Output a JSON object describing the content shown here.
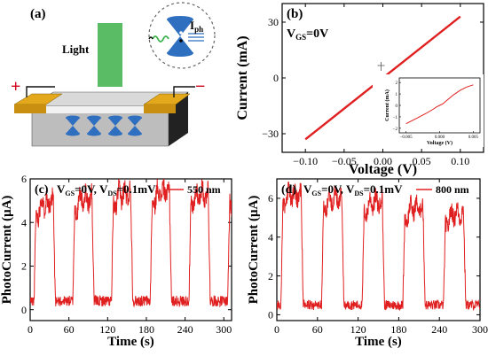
{
  "panel_a": {
    "label": "(a)",
    "light_label": "Light",
    "inset_label_main": "I",
    "inset_label_sub": "ph",
    "plus": "+",
    "minus": "−",
    "colors": {
      "light": "#3db24a",
      "electrode": "#e3a81c",
      "substrate": "#bdbdbd",
      "cone": "#2f6fbf",
      "plus": "#d0021b"
    }
  },
  "chart_data": [
    {
      "id": "b",
      "type": "line",
      "panel_label": "(b)",
      "annotation_main": "V",
      "annotation_sub": "GS",
      "annotation_rest": "=0V",
      "xlabel": "Voltage (V)",
      "ylabel": "Current (mA)",
      "xlim": [
        -0.13,
        0.13
      ],
      "ylim": [
        -40,
        40
      ],
      "x_ticks": [
        -0.1,
        -0.05,
        0.0,
        0.05,
        0.1
      ],
      "x_tick_labels": [
        "−0.10",
        "−0.05",
        "0.00",
        "0.05",
        "0.10"
      ],
      "y_ticks": [
        -30,
        0,
        30
      ],
      "y_tick_labels": [
        "−30",
        "0",
        "30"
      ],
      "series": [
        {
          "x": [
            -0.1,
            0.1
          ],
          "y": [
            -33,
            33
          ],
          "color": "#e02020"
        }
      ],
      "inset": {
        "xlabel": "Voltage (V)",
        "ylabel": "Current (mA)",
        "xlim": [
          -0.006,
          0.006
        ],
        "ylim": [
          -2.4,
          2.4
        ],
        "x_ticks": [
          -0.005,
          0.0,
          0.005
        ],
        "x_tick_labels": [
          "−0.005",
          "0.000",
          "0.005"
        ],
        "y_ticks": [
          -2,
          -1,
          0,
          1,
          2
        ],
        "y_tick_labels": [
          "−2",
          "−1",
          "0",
          "1",
          "2"
        ],
        "x": [
          -0.005,
          -0.004,
          -0.003,
          -0.002,
          -0.001,
          -0.0005,
          0.0,
          0.0005,
          0.001,
          0.002,
          0.003,
          0.004,
          0.005
        ],
        "y": [
          -1.6,
          -1.3,
          -1.0,
          -0.7,
          -0.35,
          -0.15,
          0.0,
          0.15,
          0.4,
          0.9,
          1.3,
          1.6,
          1.8
        ]
      }
    },
    {
      "id": "c",
      "type": "line",
      "panel_label": "(c)",
      "annotation": {
        "v1": "V",
        "s1": "GS",
        "r1": "=0V, ",
        "v2": "V",
        "s2": "DS",
        "r2": "=0.1mV"
      },
      "legend": "550 nm",
      "xlabel": "Time (s)",
      "ylabel": "PhotoCurrent (μA)",
      "xlim": [
        0,
        312
      ],
      "ylim": [
        -0.5,
        6
      ],
      "x_ticks": [
        0,
        60,
        120,
        180,
        240,
        300
      ],
      "y_ticks": [
        0,
        2,
        4,
        6
      ],
      "period_s": 60,
      "on_level": [
        4.5,
        4.7,
        4.9,
        5.0,
        4.9
      ],
      "off_level": 0.4,
      "color": "#e02020"
    },
    {
      "id": "d",
      "type": "line",
      "panel_label": "(d)",
      "annotation": {
        "v1": "V",
        "s1": "GS",
        "r1": "=0V, ",
        "v2": "V",
        "s2": "DS",
        "r2": "=0.1mV"
      },
      "legend": "800 nm",
      "xlabel": "Time (s)",
      "ylabel": "PhotoCurrent (μA)",
      "xlim": [
        0,
        300
      ],
      "ylim": [
        -0.3,
        7
      ],
      "x_ticks": [
        0,
        60,
        120,
        180,
        240,
        300
      ],
      "y_ticks": [
        0,
        2,
        4,
        6
      ],
      "period_s": 60,
      "on_level": [
        5.8,
        5.6,
        5.4,
        5.1,
        4.8
      ],
      "off_level": 0.5,
      "color": "#e02020"
    }
  ]
}
